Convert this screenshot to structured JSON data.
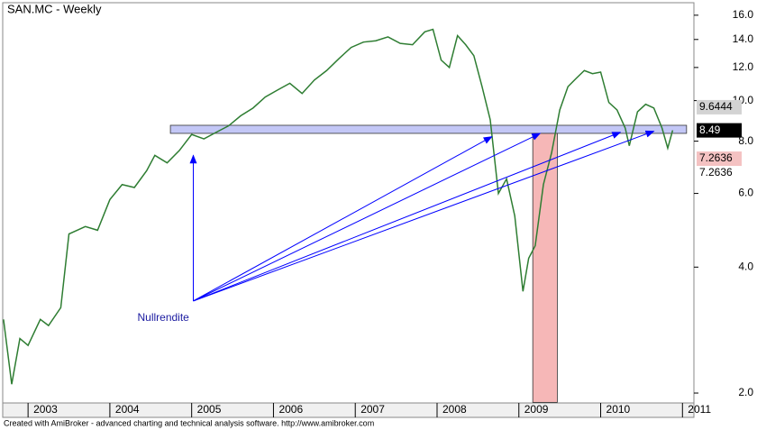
{
  "chart_data": {
    "type": "line",
    "title": "SAN.MC - Weekly",
    "log_scale": true,
    "x": [
      2002.7,
      2002.8,
      2002.9,
      2003.0,
      2003.15,
      2003.25,
      2003.4,
      2003.5,
      2003.7,
      2003.85,
      2004.0,
      2004.15,
      2004.3,
      2004.45,
      2004.55,
      2004.7,
      2004.85,
      2005.0,
      2005.15,
      2005.3,
      2005.45,
      2005.6,
      2005.75,
      2005.9,
      2006.05,
      2006.2,
      2006.35,
      2006.5,
      2006.65,
      2006.8,
      2006.95,
      2007.1,
      2007.25,
      2007.4,
      2007.55,
      2007.7,
      2007.85,
      2007.95,
      2008.05,
      2008.15,
      2008.25,
      2008.35,
      2008.45,
      2008.55,
      2008.65,
      2008.75,
      2008.85,
      2008.95,
      2009.05,
      2009.12,
      2009.2,
      2009.3,
      2009.4,
      2009.5,
      2009.6,
      2009.7,
      2009.8,
      2009.9,
      2010.0,
      2010.1,
      2010.2,
      2010.3,
      2010.35,
      2010.45,
      2010.55,
      2010.65,
      2010.75,
      2010.82,
      2010.88
    ],
    "series": [
      {
        "name": "SAN.MC",
        "color": "#2e7d32",
        "values": [
          3.0,
          2.1,
          2.7,
          2.6,
          3.0,
          2.9,
          3.2,
          4.8,
          5.0,
          4.9,
          5.8,
          6.3,
          6.2,
          6.8,
          7.4,
          7.1,
          7.6,
          8.3,
          8.1,
          8.4,
          8.7,
          9.2,
          9.6,
          10.2,
          10.6,
          11.0,
          10.4,
          11.2,
          11.8,
          12.6,
          13.4,
          13.8,
          13.9,
          14.2,
          13.7,
          13.6,
          14.6,
          14.8,
          12.5,
          12.0,
          14.3,
          13.6,
          12.8,
          10.8,
          9.0,
          6.0,
          6.5,
          5.3,
          3.5,
          4.2,
          4.5,
          6.3,
          7.5,
          9.5,
          10.8,
          11.3,
          11.8,
          11.6,
          11.7,
          9.9,
          9.5,
          8.6,
          7.8,
          9.4,
          9.8,
          9.6,
          8.6,
          7.7,
          8.49
        ]
      }
    ],
    "xlim": [
      2002.69,
      2011.14
    ],
    "xticks": [
      2003,
      2004,
      2005,
      2006,
      2007,
      2008,
      2009,
      2010,
      2011
    ],
    "ylim": [
      1.894,
      17.14
    ],
    "yticks": [
      {
        "value": 2,
        "label": "2.0"
      },
      {
        "value": 4,
        "label": "4.0"
      },
      {
        "value": 6,
        "label": "6.0"
      },
      {
        "value": 8,
        "label": "8.0"
      },
      {
        "value": 10,
        "label": "10.0"
      },
      {
        "value": 12,
        "label": "12.0"
      },
      {
        "value": 14,
        "label": "14.0"
      },
      {
        "value": 16,
        "label": "16.0"
      }
    ],
    "zones": [
      {
        "x": [
          2004.74,
          2011.05
        ],
        "y": [
          8.35,
          8.73
        ],
        "color": "#b8bdf5"
      },
      {
        "x": [
          2009.17,
          2009.47
        ],
        "y": [
          1.9,
          8.35
        ],
        "color": "#f4aaaa"
      }
    ],
    "arrows": [
      {
        "x": [
          2005.02,
          2005.02
        ],
        "y": [
          3.32,
          7.4
        ]
      },
      {
        "x": [
          2005.02,
          2008.67
        ],
        "y": [
          3.32,
          8.2
        ]
      },
      {
        "x": [
          2005.02,
          2009.26
        ],
        "y": [
          3.32,
          8.35
        ]
      },
      {
        "x": [
          2005.02,
          2010.24
        ],
        "y": [
          3.32,
          8.4
        ]
      },
      {
        "x": [
          2005.02,
          2010.65
        ],
        "y": [
          3.32,
          8.45
        ]
      }
    ],
    "annotation": "Nullrendite",
    "price_labels": [
      {
        "value": 9.6444,
        "color": "#d3d3d3",
        "text_color": "#000000"
      },
      {
        "value": 8.49,
        "color": "#000000",
        "text_color": "#ffffff"
      },
      {
        "value": 7.2636,
        "color": "#f4c2c2",
        "text_color": "#000000"
      },
      {
        "value": 7.2636,
        "color": "none",
        "text_color": "#000000"
      }
    ],
    "footer": "Created with AmiBroker - advanced charting and technical analysis software. http://www.amibroker.com"
  }
}
